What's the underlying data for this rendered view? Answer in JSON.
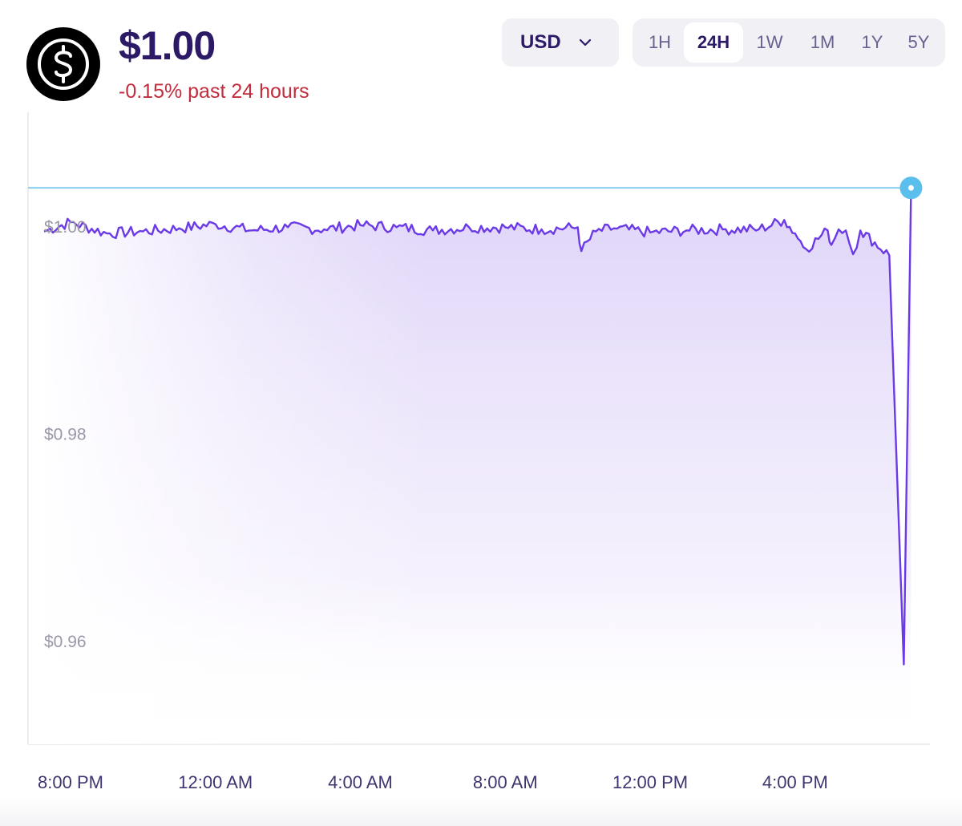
{
  "header": {
    "price": "$1.00",
    "change": "-0.15% past 24 hours",
    "logo_icon": "dollar-coin-icon",
    "price_color": "#2d1a66",
    "change_color": "#c22c3c"
  },
  "currency_select": {
    "value": "USD",
    "icon": "chevron-down-icon"
  },
  "time_ranges": [
    {
      "label": "1H",
      "active": false
    },
    {
      "label": "24H",
      "active": true
    },
    {
      "label": "1W",
      "active": false
    },
    {
      "label": "1M",
      "active": false
    },
    {
      "label": "1Y",
      "active": false
    },
    {
      "label": "5Y",
      "active": false
    }
  ],
  "chart_data": {
    "type": "area",
    "title": "",
    "xlabel": "",
    "ylabel": "",
    "ylim": [
      0.95,
      1.011
    ],
    "xlim": [
      -0.73,
      23.5
    ],
    "x_tick_labels": [
      "8:00 PM",
      "12:00 AM",
      "4:00 AM",
      "8:00 AM",
      "12:00 PM",
      "4:00 PM"
    ],
    "x_tick_hours": [
      0,
      4,
      8,
      12,
      16,
      20
    ],
    "y_tick_labels": [
      "$1.00",
      "$0.98",
      "$0.96"
    ],
    "y_tick_values": [
      1.0,
      0.98,
      0.96
    ],
    "current_price_line": 1.0037,
    "line_color": "#6b3ae6",
    "marker_color": "#5bbfee",
    "grid": false,
    "series": [
      {
        "x": [
          -0.73,
          0.0,
          1.0,
          2.0,
          3.0,
          4.0,
          5.0,
          6.0,
          7.0,
          8.0,
          9.0,
          10.0,
          11.0,
          12.0,
          13.0,
          14.0,
          14.1,
          14.5,
          15.0,
          16.0,
          17.0,
          18.0,
          19.0,
          19.7,
          20.0,
          20.3,
          20.9,
          21.0,
          21.2,
          21.4,
          21.6,
          21.8,
          22.6,
          23.0,
          23.2
        ],
        "y": [
          0.9995,
          1.0004,
          0.9993,
          0.9995,
          0.9998,
          1.0002,
          0.9996,
          0.9999,
          0.9997,
          1.0001,
          0.9999,
          0.9996,
          0.9999,
          0.9999,
          0.9997,
          0.9999,
          0.9976,
          0.9995,
          0.9998,
          0.9994,
          0.9996,
          0.9997,
          0.9997,
          1.0006,
          0.9993,
          0.9978,
          0.9996,
          0.9982,
          0.9997,
          0.9996,
          0.9973,
          0.9996,
          0.9972,
          0.9577,
          1.0033
        ]
      }
    ]
  }
}
